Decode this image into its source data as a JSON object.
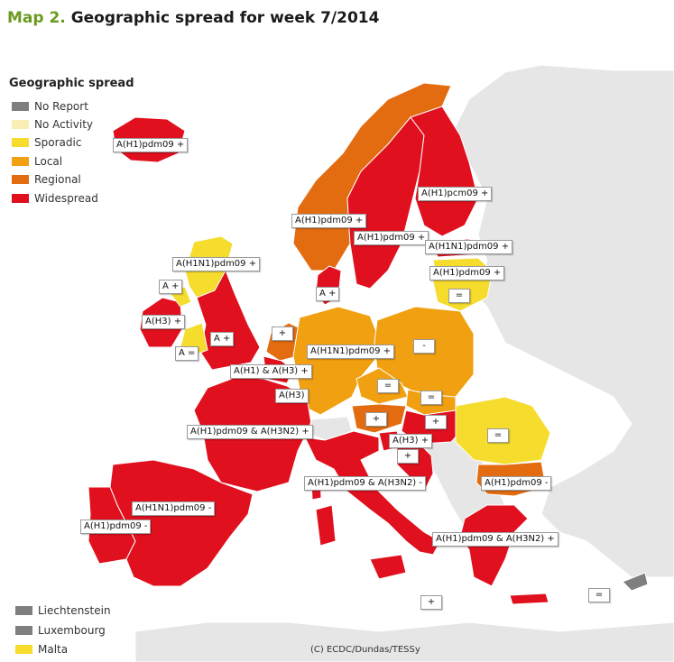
{
  "title": {
    "prefix": "Map 2.",
    "text": "Geographic spread for week 7/2014"
  },
  "legend": {
    "title": "Geographic spread",
    "items": [
      {
        "label": "No Report",
        "color": "#7f7f7f"
      },
      {
        "label": "No Activity",
        "color": "#fbeeb4"
      },
      {
        "label": "Sporadic",
        "color": "#f5dc2d"
      },
      {
        "label": "Local",
        "color": "#f0a010"
      },
      {
        "label": "Regional",
        "color": "#e36c10"
      },
      {
        "label": "Widespread",
        "color": "#e0101e"
      }
    ]
  },
  "map_labels": [
    "A(H1)pdm09 +",
    "A(H1)pdm09 +",
    "A(H1)pdm09 +",
    "A(H1)pcm09 +",
    "A(H1N1)pdm09 +",
    "A(H1)pdm09 +",
    "A(H1N1)pdm09 +",
    "A +",
    "A +",
    "A(H3) +",
    "A +",
    "A =",
    "=",
    "+",
    "A(H1N1)pdm09 +",
    "-",
    "A(H1) & A(H3) +",
    "A(H3)",
    "=",
    "=",
    "A(H1)pdm09 & A(H3N2) +",
    "+",
    "+",
    "A(H3) +",
    "+",
    "=",
    "A(H1)pdm09 & A(H3N2) -",
    "A(H1)pdm09 -",
    "A(H1N1)pdm09 -",
    "A(H1)pdm09 -",
    "A(H1)pdm09 & A(H3N2) +",
    "+",
    "="
  ],
  "bottom_legend": [
    {
      "label": "Liechtenstein",
      "color": "#7f7f7f"
    },
    {
      "label": "Luxembourg",
      "color": "#7f7f7f"
    },
    {
      "label": "Malta",
      "color": "#f5dc2d"
    }
  ],
  "credit": "(C) ECDC/Dundas/TESSy",
  "colors": {
    "widespread": "#e0101e",
    "regional": "#e36c10",
    "local": "#f0a010",
    "sporadic": "#f5dc2d",
    "no_data_region": "#e6e6e6",
    "no_report": "#7f7f7f"
  }
}
